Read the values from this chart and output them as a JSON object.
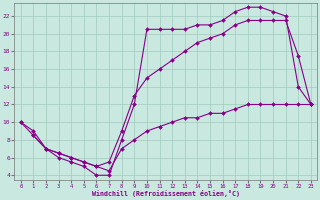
{
  "bg_color": "#c8e8e0",
  "line_color": "#880088",
  "grid_color": "#a0ccbc",
  "xlabel": "Windchill (Refroidissement éolien,°C)",
  "line1_x": [
    0,
    1,
    2,
    3,
    4,
    5,
    6,
    7,
    8,
    9,
    10,
    11,
    12,
    13,
    14,
    15,
    16,
    17,
    18,
    19,
    20,
    21,
    22,
    23
  ],
  "line1_y": [
    10,
    9,
    7,
    6,
    5.5,
    5,
    4,
    4,
    8,
    12,
    20.5,
    20.5,
    20.5,
    20.5,
    21,
    21,
    21.5,
    22.5,
    23,
    23,
    22.5,
    22,
    14,
    12
  ],
  "line2_x": [
    0,
    1,
    2,
    3,
    4,
    5,
    6,
    7,
    8,
    9,
    10,
    11,
    12,
    13,
    14,
    15,
    16,
    17,
    18,
    19,
    20,
    21,
    22,
    23
  ],
  "line2_y": [
    10,
    8.5,
    7,
    6.5,
    6,
    5.5,
    5,
    5.5,
    9,
    13,
    15,
    16,
    17,
    18,
    19,
    19.5,
    20,
    21,
    21.5,
    21.5,
    21.5,
    21.5,
    17.5,
    12
  ],
  "line3_x": [
    1,
    2,
    3,
    4,
    5,
    6,
    7,
    8,
    9,
    10,
    11,
    12,
    13,
    14,
    15,
    16,
    17,
    18,
    19,
    20,
    21,
    22,
    23
  ],
  "line3_y": [
    8.5,
    7,
    6.5,
    6,
    5.5,
    5,
    4.5,
    7,
    8,
    9,
    9.5,
    10,
    10.5,
    10.5,
    11,
    11,
    11.5,
    12,
    12,
    12,
    12,
    12,
    12
  ],
  "xlim": [
    -0.5,
    23.5
  ],
  "ylim": [
    3.5,
    23.5
  ],
  "yticks": [
    4,
    6,
    8,
    10,
    12,
    14,
    16,
    18,
    20,
    22
  ],
  "xticks": [
    0,
    1,
    2,
    3,
    4,
    5,
    6,
    7,
    8,
    9,
    10,
    11,
    12,
    13,
    14,
    15,
    16,
    17,
    18,
    19,
    20,
    21,
    22,
    23
  ]
}
